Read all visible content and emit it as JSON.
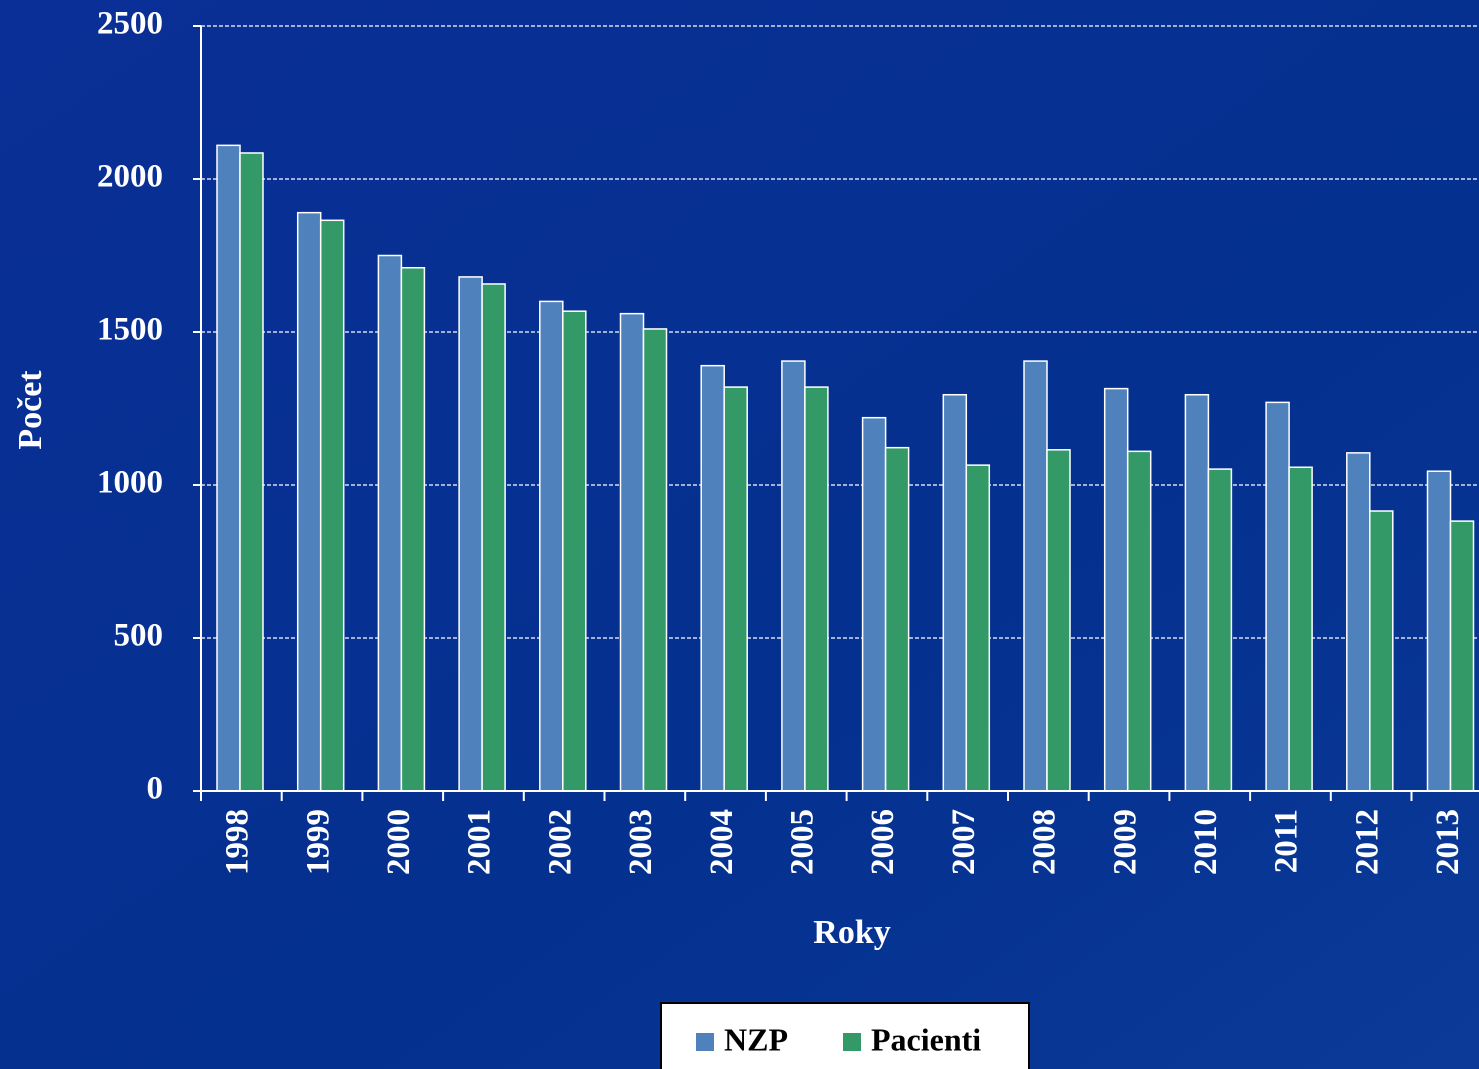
{
  "chart_data": {
    "type": "bar",
    "x_label": "Roky",
    "y_label": "Počet",
    "categories": [
      "1998",
      "1999",
      "2000",
      "2001",
      "2002",
      "2003",
      "2004",
      "2005",
      "2006",
      "2007",
      "2008",
      "2009",
      "2010",
      "2011",
      "2012",
      "2013"
    ],
    "series": [
      {
        "name": "NZP",
        "color": "#4f81bd",
        "values": [
          2110,
          1890,
          1750,
          1680,
          1600,
          1560,
          1390,
          1405,
          1220,
          1295,
          1405,
          1315,
          1295,
          1270,
          1105,
          1045
        ]
      },
      {
        "name": "Pacienti",
        "color": "#339966",
        "values": [
          2085,
          1865,
          1710,
          1657,
          1568,
          1510,
          1320,
          1320,
          1122,
          1065,
          1115,
          1110,
          1052,
          1058,
          915,
          882
        ]
      }
    ],
    "ylim": [
      0,
      2500
    ],
    "yticks": [
      0,
      500,
      1000,
      1500,
      2000,
      2500
    ],
    "grid": true,
    "legend": "bottom"
  }
}
